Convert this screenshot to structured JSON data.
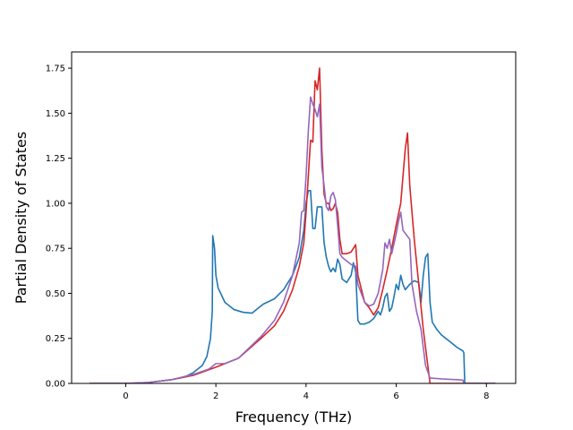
{
  "chart_data": {
    "type": "line",
    "title": "",
    "xlabel": "Frequency (THz)",
    "ylabel": "Partial Density of States",
    "xlim": [
      -1.2,
      8.65
    ],
    "ylim": [
      0,
      1.84
    ],
    "xticks": [
      0,
      2,
      4,
      6,
      8
    ],
    "yticks": [
      0.0,
      0.25,
      0.5,
      0.75,
      1.0,
      1.25,
      1.5,
      1.75
    ],
    "xtick_labels": [
      "0",
      "2",
      "4",
      "6",
      "8"
    ],
    "ytick_labels": [
      "0.00",
      "0.25",
      "0.50",
      "0.75",
      "1.00",
      "1.25",
      "1.50",
      "1.75"
    ],
    "grid": false,
    "legend": "none",
    "series": [
      {
        "color": "#1f77b4",
        "points": [
          [
            -0.8,
            0
          ],
          [
            0,
            0
          ],
          [
            0.5,
            0.005
          ],
          [
            1.0,
            0.02
          ],
          [
            1.3,
            0.035
          ],
          [
            1.5,
            0.06
          ],
          [
            1.7,
            0.1
          ],
          [
            1.8,
            0.15
          ],
          [
            1.88,
            0.25
          ],
          [
            1.92,
            0.4
          ],
          [
            1.93,
            0.82
          ],
          [
            1.97,
            0.75
          ],
          [
            2.0,
            0.6
          ],
          [
            2.05,
            0.53
          ],
          [
            2.2,
            0.45
          ],
          [
            2.4,
            0.41
          ],
          [
            2.6,
            0.395
          ],
          [
            2.8,
            0.39
          ],
          [
            2.95,
            0.42
          ],
          [
            3.05,
            0.44
          ],
          [
            3.3,
            0.47
          ],
          [
            3.5,
            0.52
          ],
          [
            3.7,
            0.6
          ],
          [
            3.85,
            0.7
          ],
          [
            3.95,
            0.85
          ],
          [
            4.0,
            1.0
          ],
          [
            4.05,
            1.07
          ],
          [
            4.1,
            1.07
          ],
          [
            4.15,
            0.86
          ],
          [
            4.2,
            0.86
          ],
          [
            4.25,
            0.98
          ],
          [
            4.35,
            0.98
          ],
          [
            4.4,
            0.78
          ],
          [
            4.45,
            0.7
          ],
          [
            4.5,
            0.65
          ],
          [
            4.55,
            0.62
          ],
          [
            4.6,
            0.64
          ],
          [
            4.65,
            0.62
          ],
          [
            4.7,
            0.69
          ],
          [
            4.75,
            0.66
          ],
          [
            4.8,
            0.58
          ],
          [
            4.9,
            0.56
          ],
          [
            5.0,
            0.6
          ],
          [
            5.05,
            0.67
          ],
          [
            5.1,
            0.62
          ],
          [
            5.15,
            0.35
          ],
          [
            5.2,
            0.33
          ],
          [
            5.3,
            0.33
          ],
          [
            5.4,
            0.34
          ],
          [
            5.5,
            0.36
          ],
          [
            5.6,
            0.4
          ],
          [
            5.65,
            0.38
          ],
          [
            5.7,
            0.42
          ],
          [
            5.75,
            0.48
          ],
          [
            5.8,
            0.5
          ],
          [
            5.85,
            0.4
          ],
          [
            5.9,
            0.42
          ],
          [
            5.95,
            0.48
          ],
          [
            6.0,
            0.55
          ],
          [
            6.05,
            0.52
          ],
          [
            6.1,
            0.6
          ],
          [
            6.15,
            0.55
          ],
          [
            6.2,
            0.52
          ],
          [
            6.3,
            0.55
          ],
          [
            6.4,
            0.57
          ],
          [
            6.5,
            0.56
          ],
          [
            6.55,
            0.45
          ],
          [
            6.6,
            0.6
          ],
          [
            6.65,
            0.7
          ],
          [
            6.7,
            0.72
          ],
          [
            6.75,
            0.45
          ],
          [
            6.8,
            0.34
          ],
          [
            6.9,
            0.3
          ],
          [
            7.0,
            0.27
          ],
          [
            7.2,
            0.23
          ],
          [
            7.35,
            0.2
          ],
          [
            7.45,
            0.185
          ],
          [
            7.48,
            0.18
          ],
          [
            7.5,
            0.17
          ],
          [
            7.52,
            0.0
          ],
          [
            8.2,
            0.0
          ]
        ]
      },
      {
        "color": "#d62728",
        "points": [
          [
            -0.8,
            0
          ],
          [
            0,
            0
          ],
          [
            0.5,
            0.005
          ],
          [
            1.0,
            0.02
          ],
          [
            1.5,
            0.045
          ],
          [
            2.0,
            0.09
          ],
          [
            2.5,
            0.14
          ],
          [
            3.0,
            0.25
          ],
          [
            3.3,
            0.32
          ],
          [
            3.5,
            0.4
          ],
          [
            3.7,
            0.52
          ],
          [
            3.85,
            0.65
          ],
          [
            3.95,
            0.78
          ],
          [
            4.0,
            0.95
          ],
          [
            4.05,
            1.15
          ],
          [
            4.1,
            1.35
          ],
          [
            4.15,
            1.34
          ],
          [
            4.2,
            1.68
          ],
          [
            4.25,
            1.63
          ],
          [
            4.3,
            1.75
          ],
          [
            4.35,
            1.3
          ],
          [
            4.4,
            1.05
          ],
          [
            4.45,
            1.0
          ],
          [
            4.5,
            1.0
          ],
          [
            4.55,
            0.96
          ],
          [
            4.6,
            0.97
          ],
          [
            4.65,
            1.0
          ],
          [
            4.7,
            0.95
          ],
          [
            4.75,
            0.8
          ],
          [
            4.8,
            0.72
          ],
          [
            4.9,
            0.72
          ],
          [
            5.0,
            0.73
          ],
          [
            5.1,
            0.77
          ],
          [
            5.15,
            0.6
          ],
          [
            5.3,
            0.45
          ],
          [
            5.4,
            0.42
          ],
          [
            5.5,
            0.38
          ],
          [
            5.6,
            0.42
          ],
          [
            5.7,
            0.52
          ],
          [
            5.8,
            0.63
          ],
          [
            5.9,
            0.75
          ],
          [
            6.0,
            0.88
          ],
          [
            6.1,
            1.0
          ],
          [
            6.15,
            1.15
          ],
          [
            6.2,
            1.3
          ],
          [
            6.25,
            1.39
          ],
          [
            6.3,
            1.1
          ],
          [
            6.4,
            0.8
          ],
          [
            6.5,
            0.55
          ],
          [
            6.6,
            0.3
          ],
          [
            6.7,
            0.1
          ],
          [
            6.75,
            0.0
          ],
          [
            8.2,
            0.0
          ]
        ]
      },
      {
        "color": "#9467bd",
        "points": [
          [
            -0.8,
            0
          ],
          [
            0,
            0
          ],
          [
            0.5,
            0.005
          ],
          [
            1.0,
            0.02
          ],
          [
            1.5,
            0.05
          ],
          [
            1.85,
            0.08
          ],
          [
            1.95,
            0.1
          ],
          [
            2.0,
            0.11
          ],
          [
            2.2,
            0.11
          ],
          [
            2.5,
            0.14
          ],
          [
            3.0,
            0.26
          ],
          [
            3.3,
            0.35
          ],
          [
            3.5,
            0.45
          ],
          [
            3.7,
            0.6
          ],
          [
            3.85,
            0.78
          ],
          [
            3.9,
            0.95
          ],
          [
            3.95,
            0.96
          ],
          [
            4.0,
            1.15
          ],
          [
            4.05,
            1.4
          ],
          [
            4.1,
            1.59
          ],
          [
            4.15,
            1.55
          ],
          [
            4.2,
            1.52
          ],
          [
            4.25,
            1.48
          ],
          [
            4.3,
            1.55
          ],
          [
            4.35,
            1.2
          ],
          [
            4.4,
            1.1
          ],
          [
            4.45,
            0.98
          ],
          [
            4.5,
            0.96
          ],
          [
            4.55,
            1.04
          ],
          [
            4.6,
            1.06
          ],
          [
            4.65,
            1.02
          ],
          [
            4.7,
            0.88
          ],
          [
            4.75,
            0.72
          ],
          [
            4.8,
            0.7
          ],
          [
            4.9,
            0.68
          ],
          [
            5.0,
            0.66
          ],
          [
            5.1,
            0.65
          ],
          [
            5.15,
            0.55
          ],
          [
            5.3,
            0.45
          ],
          [
            5.4,
            0.43
          ],
          [
            5.5,
            0.44
          ],
          [
            5.6,
            0.5
          ],
          [
            5.7,
            0.63
          ],
          [
            5.75,
            0.78
          ],
          [
            5.8,
            0.75
          ],
          [
            5.85,
            0.8
          ],
          [
            5.9,
            0.72
          ],
          [
            6.0,
            0.83
          ],
          [
            6.05,
            0.9
          ],
          [
            6.1,
            0.95
          ],
          [
            6.15,
            0.85
          ],
          [
            6.3,
            0.8
          ],
          [
            6.35,
            0.55
          ],
          [
            6.45,
            0.4
          ],
          [
            6.55,
            0.3
          ],
          [
            6.65,
            0.1
          ],
          [
            6.75,
            0.03
          ],
          [
            7.0,
            0.025
          ],
          [
            7.4,
            0.02
          ],
          [
            7.48,
            0.018
          ],
          [
            7.5,
            0.0
          ],
          [
            8.2,
            0.0
          ]
        ]
      }
    ]
  }
}
